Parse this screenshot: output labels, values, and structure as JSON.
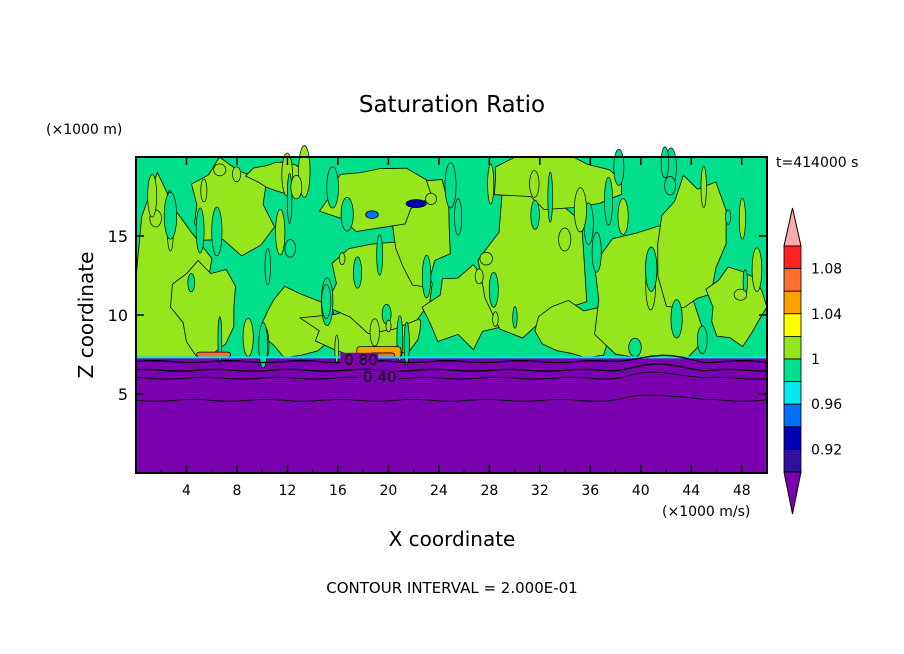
{
  "chart_data": {
    "type": "heatmap",
    "title": "Saturation Ratio",
    "xlabel": "X coordinate",
    "ylabel": "Z coordinate",
    "x_unit": "(×1000 m/s)",
    "y_unit": "(×1000 m)",
    "time_label": "t=414000 s",
    "footer": "CONTOUR INTERVAL = 2.000E-01",
    "xlim": [
      0,
      50
    ],
    "ylim": [
      0,
      20
    ],
    "x_ticks": [
      4,
      8,
      12,
      16,
      20,
      24,
      28,
      32,
      36,
      40,
      44,
      48
    ],
    "y_ticks": [
      5,
      10,
      15
    ],
    "colorbar": {
      "levels": [
        0.9,
        0.92,
        0.94,
        0.96,
        0.98,
        1.0,
        1.02,
        1.04,
        1.06,
        1.08,
        1.1
      ],
      "tick_labels": [
        "0.92",
        "0.96",
        "1",
        "1.04",
        "1.08"
      ],
      "colors": [
        "#7a00b0",
        "#3010a0",
        "#0000b4",
        "#0070ff",
        "#00e8f0",
        "#00e08c",
        "#96e61e",
        "#ffff00",
        "#ffa000",
        "#ff7030",
        "#ff2020",
        "#ffaaaa"
      ]
    },
    "contour_labels": [
      "0.80",
      "0.40"
    ],
    "contour_lines_z": [
      7.05,
      6.5,
      6.0,
      4.6
    ],
    "inversion_height": 7.3,
    "upper_background_value": 0.99,
    "moist_patches_value": 1.01,
    "supersaturated_patches": [
      {
        "x": [
          4.8,
          7.5
        ],
        "z": [
          7.35,
          7.65
        ],
        "value": 1.06
      },
      {
        "x": [
          17.5,
          21.0
        ],
        "z": [
          7.3,
          8.0
        ],
        "value": 1.04
      },
      {
        "x": [
          18.5,
          20.5
        ],
        "z": [
          7.3,
          7.6
        ],
        "value": 1.07
      }
    ],
    "dry_pockets": [
      {
        "x": [
          21.4,
          23.0
        ],
        "z": [
          16.8,
          17.3
        ],
        "value": 0.92
      },
      {
        "x": [
          18.2,
          19.2
        ],
        "z": [
          16.1,
          16.6
        ],
        "value": 0.94
      }
    ]
  }
}
